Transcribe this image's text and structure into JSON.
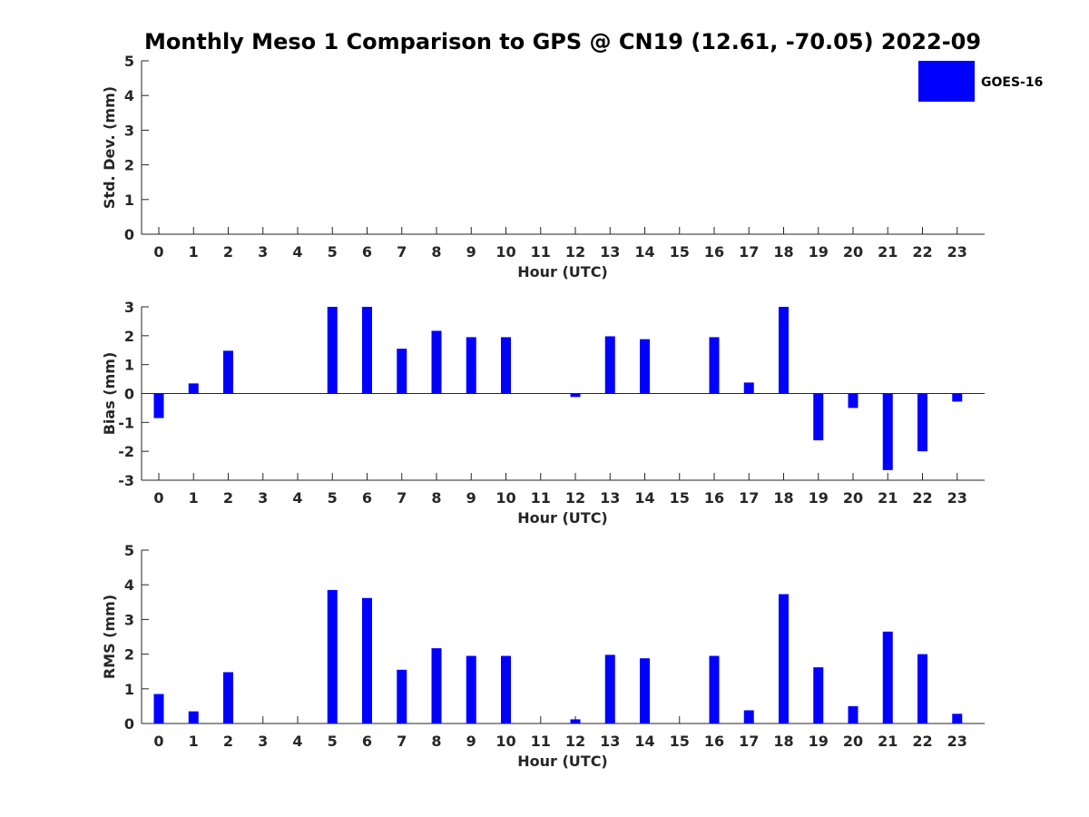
{
  "chart_data": {
    "type": "bar",
    "title": "Monthly Meso 1 Comparison to GPS @ CN19 (12.61, -70.05) 2022-09",
    "legend": {
      "label": "GOES-16",
      "position": "top-right",
      "color": "#0000ff"
    },
    "bar_color": "#0000ff",
    "x_categories": [
      "0",
      "1",
      "2",
      "3",
      "4",
      "5",
      "6",
      "7",
      "8",
      "9",
      "10",
      "11",
      "12",
      "13",
      "14",
      "15",
      "16",
      "17",
      "18",
      "19",
      "20",
      "21",
      "22",
      "23"
    ],
    "panels": [
      {
        "id": "stddev",
        "xlabel": "Hour (UTC)",
        "ylabel": "Std. Dev. (mm)",
        "ylim": [
          0,
          5
        ],
        "yticks": [
          0,
          1,
          2,
          3,
          4,
          5
        ],
        "values": [
          null,
          null,
          null,
          null,
          null,
          null,
          null,
          null,
          null,
          null,
          null,
          null,
          null,
          null,
          null,
          null,
          null,
          null,
          null,
          null,
          null,
          null,
          null,
          null
        ]
      },
      {
        "id": "bias",
        "xlabel": "Hour (UTC)",
        "ylabel": "Bias (mm)",
        "ylim": [
          -3,
          3
        ],
        "yticks": [
          -3,
          -2,
          -1,
          0,
          1,
          2,
          3
        ],
        "zero_line": true,
        "values": [
          -0.85,
          0.35,
          1.48,
          null,
          null,
          3.0,
          3.0,
          1.55,
          2.17,
          1.95,
          1.95,
          null,
          -0.12,
          1.98,
          1.88,
          null,
          1.95,
          0.38,
          3.0,
          -1.62,
          -0.5,
          -2.65,
          -2.0,
          -0.28
        ]
      },
      {
        "id": "rms",
        "xlabel": "Hour (UTC)",
        "ylabel": "RMS (mm)",
        "ylim": [
          0,
          5
        ],
        "yticks": [
          0,
          1,
          2,
          3,
          4,
          5
        ],
        "values": [
          0.85,
          0.35,
          1.48,
          null,
          null,
          3.85,
          3.62,
          1.55,
          2.17,
          1.95,
          1.95,
          null,
          0.12,
          1.98,
          1.88,
          null,
          1.95,
          0.38,
          3.73,
          1.62,
          0.5,
          2.65,
          2.0,
          0.28
        ]
      }
    ]
  }
}
